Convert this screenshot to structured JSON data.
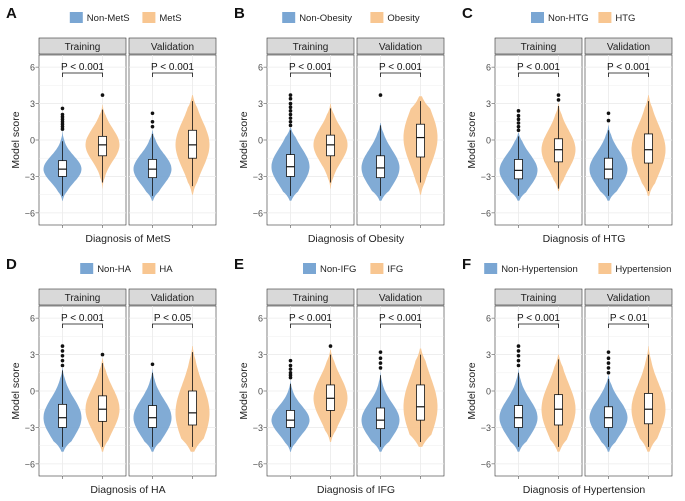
{
  "colors": {
    "negative": "#7aa6d3",
    "positive": "#f8c691",
    "strip_fill": "#d9d9d9",
    "strip_stroke": "#333333",
    "panel_bg": "#ffffff",
    "grid": "#ebebeb",
    "text": "#222222",
    "axis_text": "#4d4d4d"
  },
  "y_axis": {
    "label": "Model score",
    "ticks": [
      6,
      3,
      0,
      -3,
      -6
    ],
    "ylim": [
      -7,
      7
    ]
  },
  "facets": [
    "Training",
    "Validation"
  ],
  "chart_data": [
    {
      "type": "violin",
      "letter": "A",
      "xlabel": "Diagnosis of MetS",
      "legend": [
        "Non-MetS",
        "MetS"
      ],
      "p_values": [
        "P < 0.001",
        "P < 0.001"
      ],
      "groups": [
        [
          {
            "q1": -3.0,
            "median": -2.4,
            "q3": -1.7,
            "wlo": -4.6,
            "whi": -0.1,
            "min": -5.0,
            "max": 0.8,
            "outliers": [
              0.9,
              1.1,
              1.3,
              1.5,
              1.7,
              1.9,
              2.1,
              2.6
            ]
          },
          {
            "q1": -1.3,
            "median": -0.4,
            "q3": 0.3,
            "wlo": -3.5,
            "whi": 2.5,
            "min": -4.0,
            "max": 2.9,
            "outliers": [
              3.7
            ]
          }
        ],
        [
          {
            "q1": -3.1,
            "median": -2.4,
            "q3": -1.6,
            "wlo": -4.6,
            "whi": 0.5,
            "min": -5.0,
            "max": 0.8,
            "outliers": [
              1.1,
              1.5,
              2.2
            ]
          },
          {
            "q1": -1.5,
            "median": -0.4,
            "q3": 0.8,
            "wlo": -3.8,
            "whi": 3.2,
            "min": -4.5,
            "max": 3.7,
            "outliers": []
          }
        ]
      ]
    },
    {
      "type": "violin",
      "letter": "B",
      "xlabel": "Diagnosis of Obesity",
      "legend": [
        "Non-Obesity",
        "Obesity"
      ],
      "p_values": [
        "P < 0.001",
        "P < 0.001"
      ],
      "groups": [
        [
          {
            "q1": -3.0,
            "median": -2.2,
            "q3": -1.2,
            "wlo": -4.6,
            "whi": 0.8,
            "min": -5.0,
            "max": 1.0,
            "outliers": [
              1.2,
              1.5,
              1.8,
              2.1,
              2.4,
              2.7,
              3.0,
              3.4,
              3.7
            ]
          },
          {
            "q1": -1.3,
            "median": -0.4,
            "q3": 0.4,
            "wlo": -3.5,
            "whi": 2.6,
            "min": -4.0,
            "max": 3.0,
            "outliers": []
          }
        ],
        [
          {
            "q1": -3.1,
            "median": -2.3,
            "q3": -1.3,
            "wlo": -4.6,
            "whi": 1.2,
            "min": -5.0,
            "max": 1.4,
            "outliers": [
              3.7
            ]
          },
          {
            "q1": -1.4,
            "median": 0.2,
            "q3": 1.3,
            "wlo": -3.5,
            "whi": 3.2,
            "min": -4.5,
            "max": 3.6,
            "outliers": []
          }
        ]
      ]
    },
    {
      "type": "violin",
      "letter": "C",
      "xlabel": "Diagnosis of HTG",
      "legend": [
        "Non-HTG",
        "HTG"
      ],
      "p_values": [
        "P < 0.001",
        "P < 0.001"
      ],
      "groups": [
        [
          {
            "q1": -3.2,
            "median": -2.5,
            "q3": -1.6,
            "wlo": -4.6,
            "whi": 0.3,
            "min": -5.0,
            "max": 0.6,
            "outliers": [
              0.8,
              1.1,
              1.4,
              1.7,
              2.0,
              2.4
            ]
          },
          {
            "q1": -1.8,
            "median": -0.8,
            "q3": 0.1,
            "wlo": -4.0,
            "whi": 2.8,
            "min": -4.2,
            "max": 3.0,
            "outliers": [
              3.3,
              3.7
            ]
          }
        ],
        [
          {
            "q1": -3.2,
            "median": -2.4,
            "q3": -1.5,
            "wlo": -4.6,
            "whi": 0.8,
            "min": -5.0,
            "max": 1.2,
            "outliers": [
              1.6,
              2.2
            ]
          },
          {
            "q1": -1.9,
            "median": -0.8,
            "q3": 0.5,
            "wlo": -4.2,
            "whi": 3.2,
            "min": -4.6,
            "max": 3.7,
            "outliers": []
          }
        ]
      ]
    },
    {
      "type": "violin",
      "letter": "D",
      "xlabel": "Diagnosis of HA",
      "legend": [
        "Non-HA",
        "HA"
      ],
      "p_values": [
        "P < 0.001",
        "P < 0.05"
      ],
      "groups": [
        [
          {
            "q1": -3.0,
            "median": -2.2,
            "q3": -1.1,
            "wlo": -4.6,
            "whi": 1.7,
            "min": -5.0,
            "max": 1.9,
            "outliers": [
              2.1,
              2.5,
              2.9,
              3.3,
              3.7
            ]
          },
          {
            "q1": -2.5,
            "median": -1.5,
            "q3": -0.4,
            "wlo": -4.6,
            "whi": 2.3,
            "min": -5.0,
            "max": 2.7,
            "outliers": [
              3.0
            ]
          }
        ],
        [
          {
            "q1": -3.0,
            "median": -2.2,
            "q3": -1.2,
            "wlo": -4.6,
            "whi": 1.5,
            "min": -5.0,
            "max": 1.8,
            "outliers": [
              2.2
            ]
          },
          {
            "q1": -2.8,
            "median": -1.8,
            "q3": 0.0,
            "wlo": -4.6,
            "whi": 3.2,
            "min": -5.0,
            "max": 3.7,
            "outliers": []
          }
        ]
      ]
    },
    {
      "type": "violin",
      "letter": "E",
      "xlabel": "Diagnosis of IFG",
      "legend": [
        "Non-IFG",
        "IFG"
      ],
      "p_values": [
        "P < 0.001",
        "P < 0.001"
      ],
      "groups": [
        [
          {
            "q1": -3.0,
            "median": -2.4,
            "q3": -1.6,
            "wlo": -4.6,
            "whi": 0.6,
            "min": -5.0,
            "max": 0.9,
            "outliers": [
              1.1,
              1.3,
              1.5,
              1.8,
              2.1,
              2.5
            ]
          },
          {
            "q1": -1.6,
            "median": -0.6,
            "q3": 0.5,
            "wlo": -3.8,
            "whi": 3.0,
            "min": -4.2,
            "max": 3.4,
            "outliers": [
              3.7
            ]
          }
        ],
        [
          {
            "q1": -3.1,
            "median": -2.4,
            "q3": -1.4,
            "wlo": -4.6,
            "whi": 1.3,
            "min": -5.0,
            "max": 1.6,
            "outliers": [
              1.9,
              2.3,
              2.7,
              3.2
            ]
          },
          {
            "q1": -2.4,
            "median": -1.3,
            "q3": 0.5,
            "wlo": -4.2,
            "whi": 3.0,
            "min": -4.6,
            "max": 3.5,
            "outliers": []
          }
        ]
      ]
    },
    {
      "type": "violin",
      "letter": "F",
      "xlabel": "Diagnosis of Hypertension",
      "legend": [
        "Non-Hypertension",
        "Hypertension"
      ],
      "p_values": [
        "P < 0.001",
        "P < 0.01"
      ],
      "groups": [
        [
          {
            "q1": -3.0,
            "median": -2.2,
            "q3": -1.2,
            "wlo": -4.6,
            "whi": 1.5,
            "min": -5.0,
            "max": 1.8,
            "outliers": [
              2.1,
              2.5,
              2.9,
              3.3,
              3.7
            ]
          },
          {
            "q1": -2.8,
            "median": -1.5,
            "q3": -0.3,
            "wlo": -4.6,
            "whi": 2.6,
            "min": -5.0,
            "max": 3.0,
            "outliers": []
          }
        ],
        [
          {
            "q1": -3.0,
            "median": -2.2,
            "q3": -1.3,
            "wlo": -4.6,
            "whi": 1.0,
            "min": -5.0,
            "max": 1.3,
            "outliers": [
              1.5,
              1.9,
              2.3,
              2.7,
              3.2
            ]
          },
          {
            "q1": -2.7,
            "median": -1.5,
            "q3": -0.2,
            "wlo": -4.6,
            "whi": 3.0,
            "min": -5.0,
            "max": 3.7,
            "outliers": []
          }
        ]
      ]
    }
  ]
}
